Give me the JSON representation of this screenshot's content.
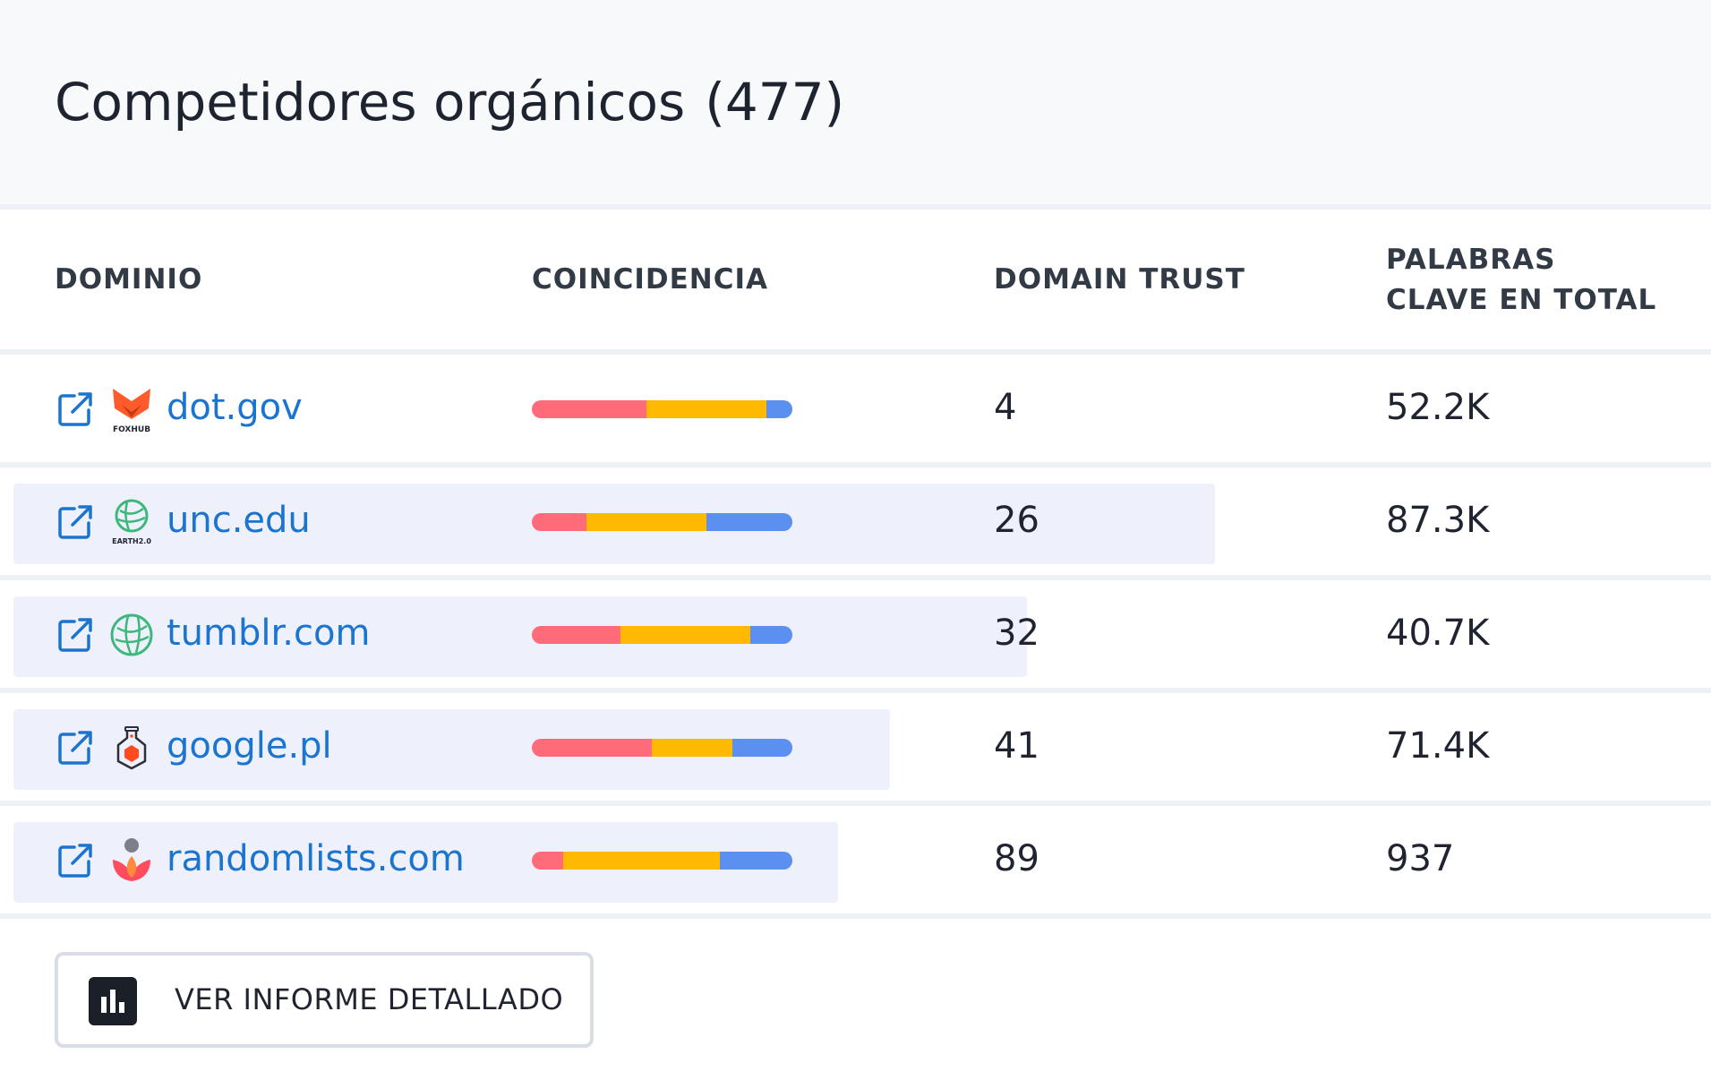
{
  "header": {
    "title": "Competidores orgánicos",
    "count": "(477)"
  },
  "columns": {
    "domain": "DOMINIO",
    "match": "COINCIDENCIA",
    "trust": "DOMAIN TRUST",
    "keywords_line1": "PALABRAS",
    "keywords_line2": "CLAVE EN TOTAL"
  },
  "colors": {
    "bar_red": "#ff6b79",
    "bar_yellow": "#ffb900",
    "bar_blue": "#5b8ff0",
    "link": "#1a74d0",
    "row_highlight": "#eef1fc"
  },
  "rows": [
    {
      "domain": "dot.gov",
      "logo_icon": "foxhub-logo",
      "logo_text": "FOXHUB",
      "match": [
        0.44,
        0.46,
        0.1
      ],
      "trust": "4",
      "keywords": "52.2K",
      "highlight_fraction": 0
    },
    {
      "domain": "unc.edu",
      "logo_icon": "earth-2-logo",
      "logo_text": "EARTH2.0",
      "match": [
        0.21,
        0.46,
        0.33
      ],
      "trust": "26",
      "keywords": "87.3K",
      "highlight_fraction": 0.71
    },
    {
      "domain": "tumblr.com",
      "logo_icon": "globe-leaf-logo",
      "logo_text": "",
      "match": [
        0.34,
        0.5,
        0.16
      ],
      "trust": "32",
      "keywords": "40.7K",
      "highlight_fraction": 0.6
    },
    {
      "domain": "google.pl",
      "logo_icon": "flask-hexagon-logo",
      "logo_text": "",
      "match": [
        0.46,
        0.31,
        0.23
      ],
      "trust": "41",
      "keywords": "71.4K",
      "highlight_fraction": 0.52
    },
    {
      "domain": "randomlists.com",
      "logo_icon": "lotus-person-logo",
      "logo_text": "",
      "match": [
        0.12,
        0.6,
        0.28
      ],
      "trust": "89",
      "keywords": "937",
      "highlight_fraction": 0.49
    }
  ],
  "button": {
    "label": "VER INFORME DETALLADO",
    "icon": "bar-chart-icon"
  }
}
